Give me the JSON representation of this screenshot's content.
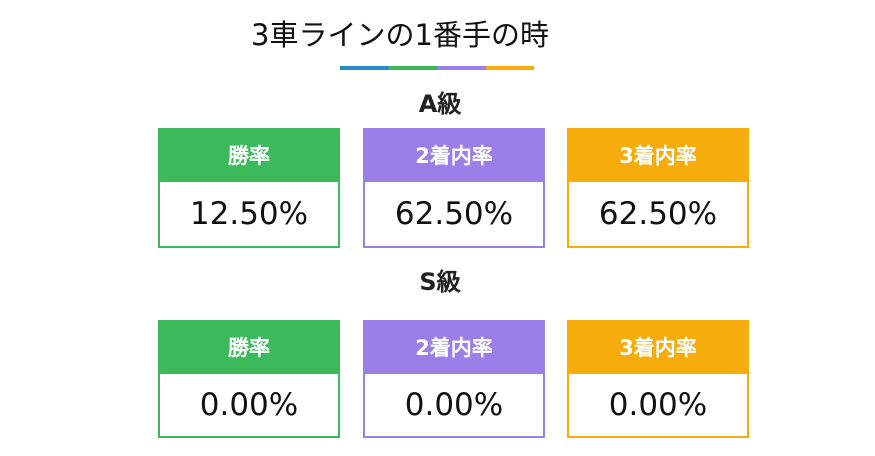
{
  "header": {
    "title": "3車ラインの1番手の時"
  },
  "sections": [
    {
      "label": "A級",
      "cards": [
        {
          "label": "勝率",
          "value": "12.50%"
        },
        {
          "label": "2着内率",
          "value": "62.50%"
        },
        {
          "label": "3着内率",
          "value": "62.50%"
        }
      ]
    },
    {
      "label": "S級",
      "cards": [
        {
          "label": "勝率",
          "value": "0.00%"
        },
        {
          "label": "2着内率",
          "value": "0.00%"
        },
        {
          "label": "3着内率",
          "value": "0.00%"
        }
      ]
    }
  ]
}
